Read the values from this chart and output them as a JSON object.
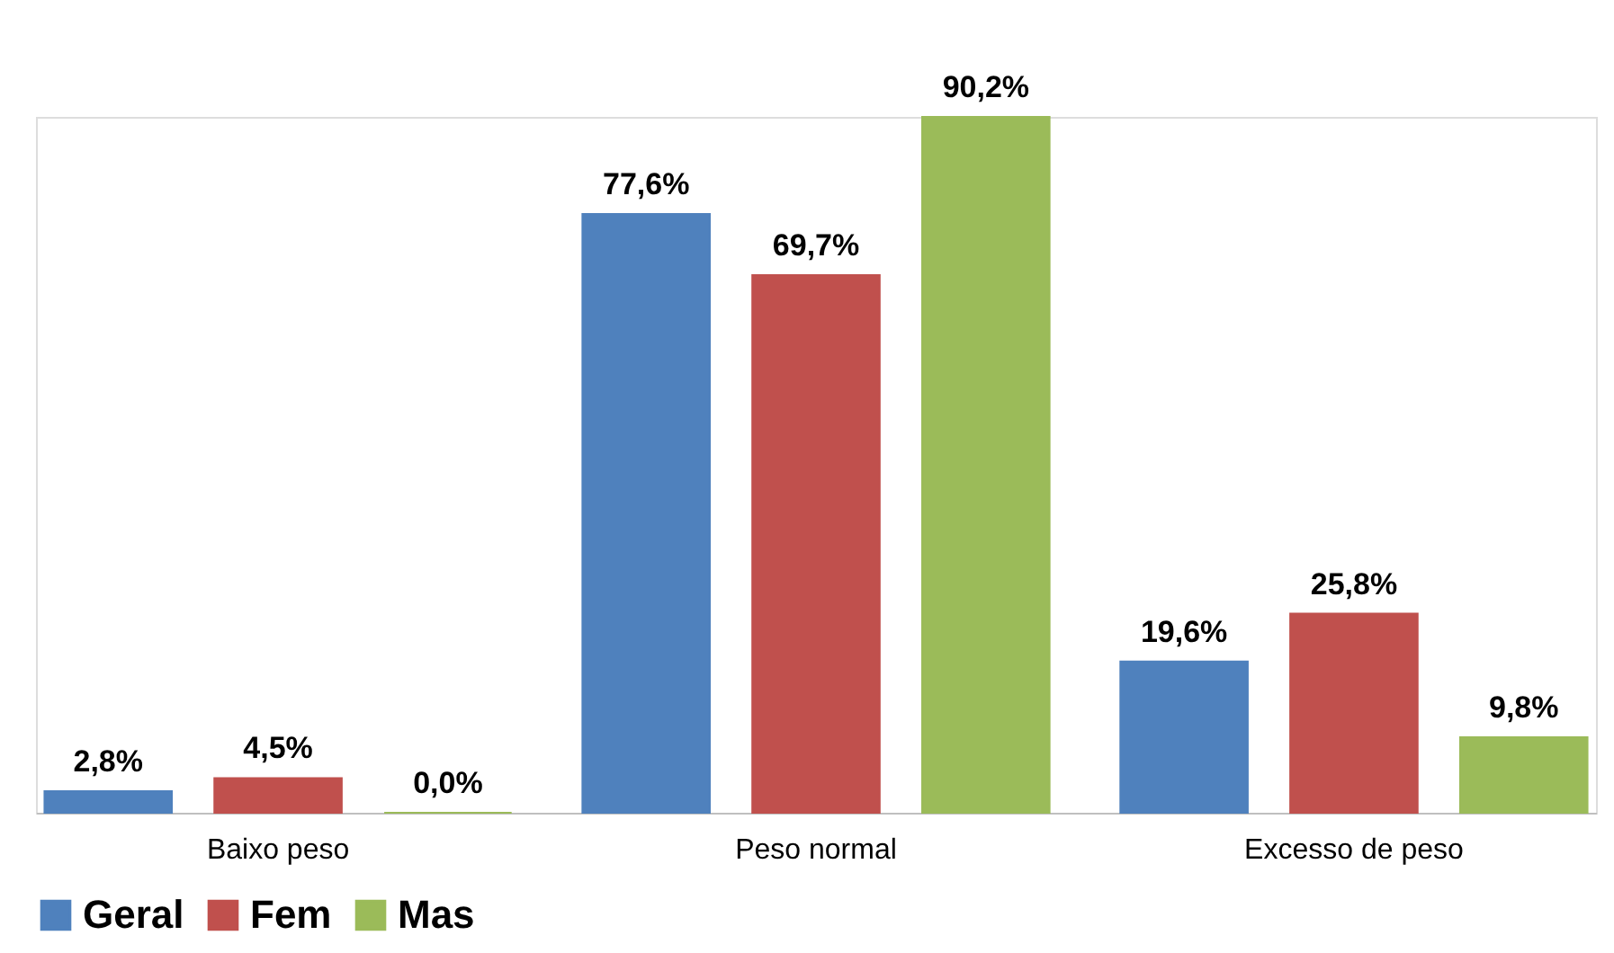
{
  "chart_data": {
    "type": "bar",
    "categories": [
      "Baixo peso",
      "Peso normal",
      "Excesso de peso"
    ],
    "series": [
      {
        "name": "Geral",
        "color": "#4f81bd",
        "values": [
          2.8,
          77.6,
          19.6
        ],
        "value_labels": [
          "2,8%",
          "77,6%",
          "19,6%"
        ]
      },
      {
        "name": "Fem",
        "color": "#c0504d",
        "values": [
          4.5,
          69.7,
          25.8
        ],
        "value_labels": [
          "4,5%",
          "69,7%",
          "25,8%"
        ]
      },
      {
        "name": "Mas",
        "color": "#9bbb59",
        "values": [
          0.0,
          90.2,
          9.8
        ],
        "value_labels": [
          "0,0%",
          "90,2%",
          "9,8%"
        ]
      }
    ],
    "legend": "bottom",
    "grid": false
  }
}
